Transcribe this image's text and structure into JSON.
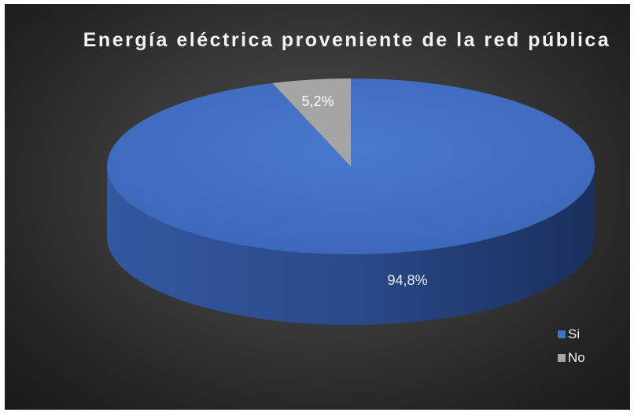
{
  "chart_data": {
    "type": "pie",
    "title": "Energía eléctrica proveniente de la red pública",
    "categories": [
      "Si",
      "No"
    ],
    "values": [
      94.8,
      5.2
    ],
    "data_labels": [
      "94,8%",
      "5,2%"
    ],
    "colors": [
      "#4472c4",
      "#a5a5a5"
    ],
    "legend_position": "bottom-right",
    "style": "3d-pie"
  }
}
